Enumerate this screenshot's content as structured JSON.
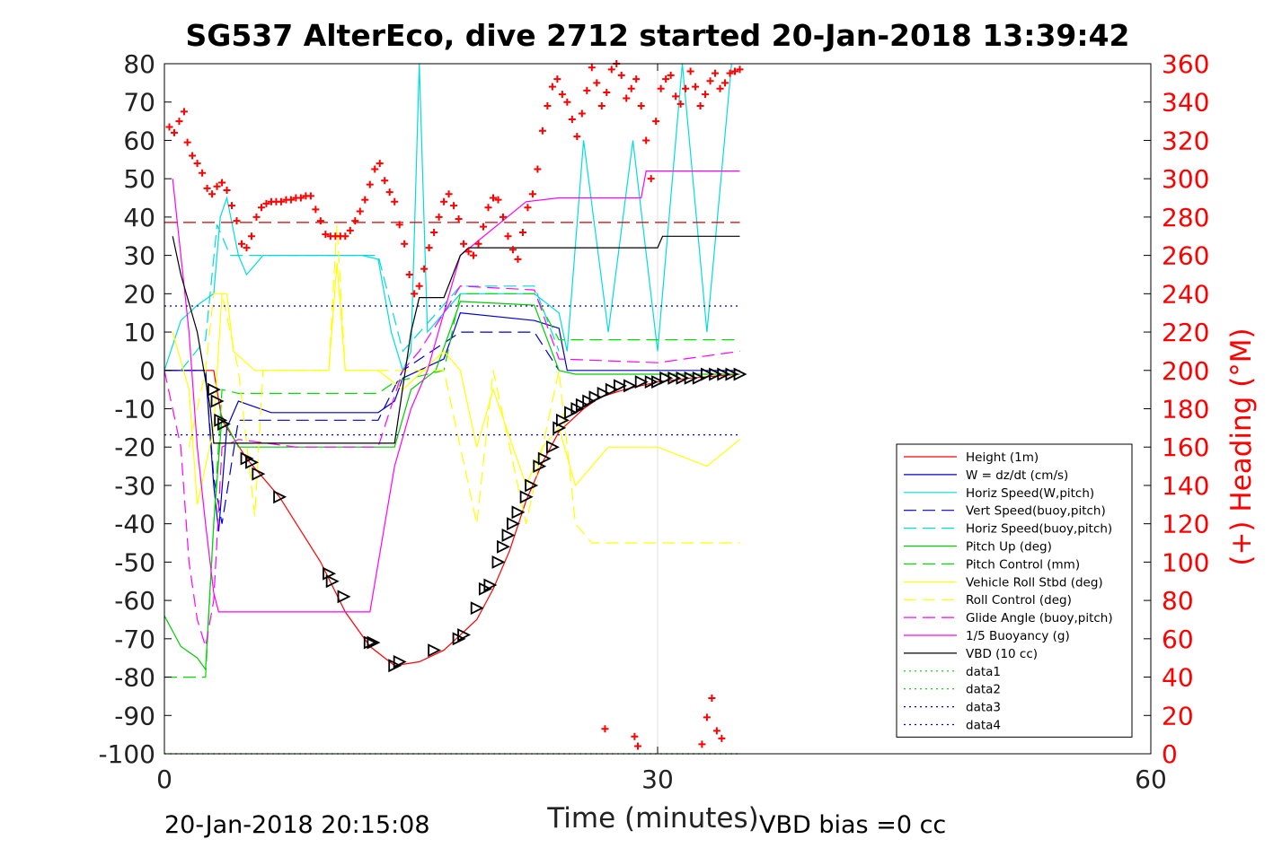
{
  "chart_data": {
    "type": "line",
    "title": "SG537 AlterEco, dive 2712 started 20-Jan-2018 13:39:42",
    "xlabel": "Time (minutes)",
    "ylabel_right": "(+) Heading (°M)",
    "footer_left": "20-Jan-2018 20:15:08",
    "footer_right": "VBD bias =0 cc",
    "xlim": [
      0,
      60
    ],
    "ylim": [
      -100,
      80
    ],
    "ylim_right": [
      0,
      360
    ],
    "xticks": [
      "0",
      "30",
      "60"
    ],
    "yticks": [
      "80",
      "70",
      "60",
      "50",
      "40",
      "30",
      "20",
      "10",
      "0",
      "-10",
      "-20",
      "-30",
      "-40",
      "-50",
      "-60",
      "-70",
      "-80",
      "-90",
      "-100"
    ],
    "yticks_right": [
      "360",
      "340",
      "320",
      "300",
      "280",
      "260",
      "240",
      "220",
      "200",
      "180",
      "160",
      "140",
      "120",
      "100",
      "80",
      "60",
      "40",
      "20",
      "0"
    ],
    "grid": "x at 30 only",
    "legend_placement": "right middle",
    "legend": [
      {
        "label": "Height (1m)",
        "color": "#ff0000",
        "style": "solid"
      },
      {
        "label": "W = dz/dt (cm/s)",
        "color": "#0000cc",
        "style": "solid"
      },
      {
        "label": "Horiz Speed(W,pitch)",
        "color": "#00dddd",
        "style": "solid"
      },
      {
        "label": "Vert Speed(buoy,pitch)",
        "color": "#0000cc",
        "style": "dashed"
      },
      {
        "label": "Horiz Speed(buoy,pitch)",
        "color": "#00dddd",
        "style": "dashed"
      },
      {
        "label": "Pitch Up (deg)",
        "color": "#00cc00",
        "style": "solid"
      },
      {
        "label": "Pitch Control (mm)",
        "color": "#00dd00",
        "style": "dashed"
      },
      {
        "label": "Vehicle Roll Stbd (deg)",
        "color": "#ffff00",
        "style": "solid"
      },
      {
        "label": "Roll Control (deg)",
        "color": "#ffff00",
        "style": "dashed"
      },
      {
        "label": "Glide Angle (buoy,pitch)",
        "color": "#ff00ff",
        "style": "dashed"
      },
      {
        "label": "1/5 Buoyancy (g)",
        "color": "#ff00ff",
        "style": "solid"
      },
      {
        "label": "VBD (10 cc)",
        "color": "#000000",
        "style": "solid"
      },
      {
        "label": "data1",
        "color": "#00cc00",
        "style": "dotted"
      },
      {
        "label": "data2",
        "color": "#00cc00",
        "style": "dotted"
      },
      {
        "label": "data3",
        "color": "#0000cc",
        "style": "dotted"
      },
      {
        "label": "data4",
        "color": "#0000cc",
        "style": "dotted"
      }
    ],
    "series": [
      {
        "name": "Height (1m)",
        "axis": "left",
        "x": [
          0,
          3.0,
          3.5,
          5.0,
          7.0,
          9.5,
          11.0,
          12.5,
          14.0,
          15.5,
          17.0,
          19.0,
          20.0,
          21.0,
          22.0,
          23.0,
          24.0,
          25.5,
          26.5,
          28.0,
          30.0,
          32.0,
          35.0
        ],
        "y": [
          0,
          0,
          -13,
          -23,
          -33,
          -50,
          -63,
          -72,
          -77,
          -76,
          -73,
          -65,
          -57,
          -47,
          -34,
          -24,
          -16,
          -10,
          -7,
          -5,
          -3,
          -2,
          -1
        ]
      },
      {
        "name": "W = dz/dt (cm/s)",
        "axis": "left",
        "x": [
          0,
          2.5,
          3.0,
          3.3,
          3.8,
          4.5,
          6.5,
          10.0,
          13.0,
          14.0,
          14.5,
          15.5,
          17.0,
          18.0,
          22.5,
          24.0,
          24.5,
          30.0,
          35.0
        ],
        "y": [
          0,
          0,
          -30,
          -42,
          -15,
          -8,
          -11,
          -11,
          -11,
          -8,
          -2,
          0,
          3,
          15,
          13,
          11,
          0,
          0,
          0
        ]
      },
      {
        "name": "Horiz Speed(W,pitch)",
        "axis": "left",
        "x": [
          0,
          1.0,
          2.0,
          3.0,
          3.4,
          3.8,
          4.5,
          5.0,
          6.0,
          8.0,
          10.0,
          12.0,
          13.0,
          13.8,
          14.5,
          15.0,
          15.5,
          16.0,
          17.0,
          18.0,
          22.5,
          24.0,
          24.5,
          25.5,
          27.0,
          28.5,
          30.0,
          31.5,
          33.0,
          34.5
        ],
        "y": [
          0,
          13,
          17,
          20,
          40,
          45,
          30,
          25,
          30,
          30,
          30,
          30,
          29,
          10,
          0,
          5,
          80,
          10,
          15,
          20,
          20,
          15,
          5,
          60,
          10,
          60,
          5,
          80,
          10,
          80
        ]
      },
      {
        "name": "Vert Speed(buoy,pitch)",
        "axis": "left",
        "x": [
          0,
          2.5,
          3.0,
          3.5,
          4.5,
          13.0,
          14.5,
          18.0,
          22.5,
          24.0
        ],
        "y": [
          0,
          0,
          -28,
          -40,
          -13,
          -13,
          0,
          10,
          10,
          0
        ]
      },
      {
        "name": "Horiz Speed(buoy,pitch)",
        "axis": "left",
        "x": [
          1.0,
          2.5,
          3.2,
          4.0,
          13.0,
          14.5,
          18.0,
          22.5,
          24.0
        ],
        "y": [
          0,
          8,
          38,
          30,
          30,
          5,
          22,
          22,
          5
        ]
      },
      {
        "name": "Pitch Up (deg)",
        "axis": "left",
        "x": [
          0,
          1.0,
          2.0,
          2.5,
          3.0,
          3.5,
          4.5,
          13.0,
          14.0,
          15.0,
          16.5,
          18.0,
          22.5,
          24.0,
          25.0,
          30.0,
          35.0
        ],
        "y": [
          -64,
          -72,
          -75,
          -78,
          -40,
          -12,
          -20,
          -20,
          -20,
          -5,
          0,
          18,
          17,
          0,
          -1,
          -1,
          -1
        ]
      },
      {
        "name": "Pitch Control (mm)",
        "axis": "left",
        "x": [
          0,
          1.5,
          2.5,
          3.0,
          3.5,
          4.5,
          13.0,
          14.0,
          17.0,
          18.0,
          22.5,
          24.0,
          30.0,
          35.0
        ],
        "y": [
          -80,
          -80,
          -80,
          -40,
          -5,
          -6,
          -6,
          -3,
          0,
          20,
          20,
          8,
          8,
          8
        ]
      },
      {
        "name": "Vehicle Roll Stbd (deg)",
        "axis": "left",
        "x": [
          0.5,
          1.5,
          2.0,
          3.0,
          3.5,
          3.8,
          4.2,
          5.5,
          6.0,
          10.0,
          10.5,
          11.0,
          13.0,
          14.5,
          17.0,
          18.0,
          19.0,
          20.0,
          22.0,
          23.0,
          24.0,
          25.0,
          27.0,
          30.0,
          33.0,
          35.0
        ],
        "y": [
          10,
          -5,
          -35,
          -15,
          20,
          20,
          5,
          0,
          0,
          0,
          28,
          0,
          0,
          -5,
          5,
          0,
          -20,
          -5,
          -30,
          -20,
          -15,
          -30,
          -20,
          -20,
          -25,
          -18
        ]
      },
      {
        "name": "Roll Control (deg)",
        "axis": "left",
        "x": [
          1.5,
          2.5,
          3.0,
          3.5,
          4.5,
          5.5,
          6.0,
          10.0,
          10.5,
          11.0,
          13.0,
          17.0,
          19.0,
          20.0,
          22.0,
          24.0,
          25.0,
          26.0,
          30.0,
          35.0
        ],
        "y": [
          -20,
          0,
          20,
          20,
          0,
          -38,
          0,
          0,
          38,
          0,
          0,
          0,
          -40,
          0,
          -40,
          0,
          -40,
          -45,
          -45,
          -45
        ]
      },
      {
        "name": "Glide Angle (buoy,pitch)",
        "axis": "left",
        "x": [
          0,
          1.0,
          1.5,
          2.0,
          2.5,
          3.0,
          3.5,
          4.5,
          8.0,
          13.0,
          14.5,
          15.5,
          17.0,
          18.0,
          22.5,
          24.0,
          30.0,
          35.0
        ],
        "y": [
          0,
          -20,
          -50,
          -65,
          -72,
          -60,
          -20,
          -18,
          -20,
          -20,
          0,
          5,
          15,
          22,
          21,
          3,
          2,
          5
        ]
      },
      {
        "name": "1/5 Buoyancy (g)",
        "axis": "left",
        "x": [
          0.5,
          1.0,
          1.5,
          2.0,
          2.5,
          3.0,
          3.3,
          12.5,
          14.0,
          15.0,
          16.0,
          17.0,
          18.0,
          22.0,
          24.0,
          24.5,
          29.0,
          29.3,
          35.0
        ],
        "y": [
          50,
          30,
          10,
          -20,
          -40,
          -58,
          -63,
          -63,
          -25,
          -10,
          0,
          15,
          30,
          44,
          45,
          45,
          45,
          52,
          52
        ]
      },
      {
        "name": "VBD (10 cc)",
        "axis": "left",
        "x": [
          0.5,
          1.0,
          2.0,
          2.8,
          3.0,
          4.0,
          12.5,
          13.0,
          14.0,
          15.0,
          15.5,
          16.5,
          17.0,
          18.0,
          18.5,
          30.0,
          30.3,
          35.0
        ],
        "y": [
          35,
          25,
          10,
          -10,
          -19,
          -19,
          -19,
          -19,
          -19,
          10,
          19,
          19,
          19,
          30,
          32,
          32,
          35,
          35
        ]
      },
      {
        "name": "data1",
        "axis": "left",
        "x": [
          0,
          35
        ],
        "y": [
          -100,
          -100
        ]
      },
      {
        "name": "data2",
        "axis": "left",
        "x": [
          0,
          35
        ],
        "y": [
          -100,
          -100
        ]
      },
      {
        "name": "data3",
        "axis": "left",
        "x": [
          0,
          35
        ],
        "y": [
          16.8,
          16.8
        ]
      },
      {
        "name": "data4",
        "axis": "left",
        "x": [
          0,
          35
        ],
        "y": [
          -16.8,
          -16.8
        ]
      }
    ],
    "reference_lines": [
      {
        "axis": "right",
        "y": 277.2,
        "color": "#cc0000",
        "style": "dashed",
        "x": [
          0,
          35
        ]
      }
    ],
    "heading_points": {
      "axis": "right",
      "color": "#ff0000",
      "marker": "+",
      "x": [
        0.3,
        0.6,
        0.9,
        1.2,
        1.4,
        1.7,
        2.0,
        2.3,
        2.6,
        2.9,
        3.2,
        3.5,
        3.8,
        4.1,
        4.4,
        4.7,
        5.0,
        5.3,
        5.6,
        5.9,
        6.2,
        6.5,
        6.8,
        7.1,
        7.4,
        7.7,
        8.0,
        8.3,
        8.6,
        8.9,
        9.2,
        9.5,
        9.8,
        10.1,
        10.4,
        10.7,
        11.0,
        11.3,
        11.6,
        11.9,
        12.2,
        12.5,
        12.8,
        13.1,
        13.4,
        13.7,
        14.0,
        14.3,
        14.6,
        14.9,
        15.2,
        15.5,
        15.8,
        16.1,
        16.4,
        16.7,
        17.0,
        17.3,
        17.6,
        17.9,
        18.2,
        18.5,
        18.8,
        19.1,
        19.4,
        19.7,
        20.0,
        20.3,
        20.6,
        20.9,
        21.2,
        21.5,
        21.8,
        22.1,
        22.4,
        22.7,
        23.0,
        23.3,
        23.6,
        23.9,
        24.2,
        24.5,
        24.8,
        25.1,
        25.4,
        25.7,
        26.0,
        26.3,
        26.6,
        26.9,
        27.2,
        27.5,
        27.8,
        28.1,
        28.4,
        28.7,
        29.0,
        29.3,
        29.6,
        29.9,
        30.2,
        30.5,
        30.8,
        31.1,
        31.4,
        31.7,
        32.0,
        32.3,
        32.6,
        32.9,
        33.2,
        33.5,
        33.8,
        34.1,
        34.4,
        34.7,
        35.0,
        26.8,
        28.6,
        28.8,
        32.7,
        33.0,
        33.3,
        33.6,
        33.9
      ],
      "y": [
        327,
        324,
        330,
        335,
        319,
        312,
        308,
        303,
        295,
        292,
        296,
        298,
        294,
        286,
        278,
        266,
        264,
        270,
        280,
        285,
        287,
        288,
        288,
        288,
        289,
        289,
        290,
        290,
        291,
        291,
        284,
        278,
        271,
        270,
        270,
        270,
        270,
        273,
        278,
        283,
        289,
        297,
        305,
        308,
        299,
        293,
        288,
        276,
        266,
        250,
        240,
        244,
        253,
        264,
        272,
        280,
        288,
        292,
        286,
        279,
        266,
        262,
        260,
        266,
        275,
        285,
        290,
        289,
        280,
        270,
        263,
        258,
        272,
        285,
        292,
        305,
        325,
        338,
        348,
        352,
        344,
        340,
        331,
        322,
        334,
        346,
        358,
        350,
        338,
        345,
        357,
        360,
        354,
        342,
        347,
        352,
        338,
        320,
        300,
        330,
        347,
        352,
        354,
        343,
        339,
        347,
        356,
        348,
        338,
        344,
        351,
        355,
        347,
        350,
        355,
        356,
        357,
        13,
        9,
        4,
        5,
        19,
        29,
        12,
        8
      ]
    },
    "triangle_points": {
      "axis": "left",
      "color": "#000000",
      "marker": "triangle",
      "x": [
        3.0,
        3.2,
        3.4,
        3.6,
        5.0,
        5.3,
        5.7,
        7.0,
        10.0,
        10.2,
        10.9,
        12.5,
        12.7,
        14.0,
        14.3,
        16.4,
        17.9,
        18.2,
        19.0,
        19.5,
        19.8,
        20.3,
        20.6,
        20.9,
        21.2,
        21.5,
        22.0,
        22.3,
        22.8,
        23.1,
        23.6,
        24.0,
        24.2,
        24.7,
        25.1,
        25.4,
        25.8,
        26.2,
        26.7,
        27.2,
        27.7,
        28.3,
        29.0,
        29.6,
        30.0,
        30.5,
        31.0,
        31.5,
        32.0,
        32.5,
        33.0,
        33.5,
        34.0,
        34.5,
        35.0
      ],
      "y": [
        -5,
        -8,
        -13,
        -14,
        -23,
        -24,
        -27,
        -33,
        -53,
        -55,
        -59,
        -71,
        -71,
        -77,
        -76,
        -73,
        -70,
        -69,
        -62,
        -57,
        -56,
        -50,
        -46,
        -43,
        -40,
        -37,
        -33,
        -30,
        -25,
        -23,
        -20,
        -15,
        -13,
        -11,
        -10,
        -9,
        -8,
        -7,
        -6,
        -5,
        -4,
        -4,
        -3,
        -3,
        -3,
        -2,
        -2,
        -2,
        -2,
        -2,
        -1,
        -1,
        -1,
        -1,
        -1
      ]
    }
  }
}
